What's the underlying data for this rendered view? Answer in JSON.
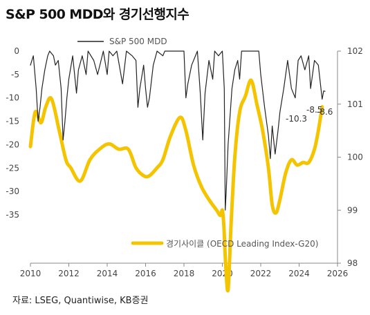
{
  "header": {
    "title": "S&P 500 MDD와 경기선행지수"
  },
  "footer": {
    "source": "자료: LSEG, Quantiwise, KB증권"
  },
  "chart_data": {
    "type": "line",
    "title": "S&P 500 MDD와 경기선행지수",
    "x_axis": {
      "range": [
        2010,
        2026
      ],
      "ticks": [
        "2010",
        "2012",
        "2014",
        "2016",
        "2018",
        "2020",
        "2022",
        "2024",
        "2026"
      ]
    },
    "y_left": {
      "range": [
        -35,
        0
      ],
      "ticks": [
        "0",
        "-5",
        "-10",
        "-15",
        "-20",
        "-25",
        "-30",
        "-35"
      ]
    },
    "y_right": {
      "range": [
        98,
        102
      ],
      "ticks": [
        "102",
        "101",
        "100",
        "99",
        "98"
      ]
    },
    "grid": false,
    "legend": [
      {
        "name": "S&P 500 MDD",
        "color": "#222222",
        "placement": "top"
      },
      {
        "name": "경기사이클 (OECD Leading Index-G20)",
        "color": "#F5C400",
        "placement": "bottom-right"
      }
    ],
    "annotations": [
      "-10.3",
      "-8.5",
      "-8.6"
    ],
    "series": [
      {
        "name": "S&P 500 MDD",
        "axis": "left",
        "color": "#222222",
        "x": [
          2010.0,
          2010.15,
          2010.3,
          2010.4,
          2010.5,
          2010.6,
          2010.75,
          2010.9,
          2011.0,
          2011.2,
          2011.3,
          2011.45,
          2011.6,
          2011.7,
          2011.8,
          2011.9,
          2012.0,
          2012.2,
          2012.4,
          2012.5,
          2012.7,
          2012.9,
          2013.0,
          2013.3,
          2013.5,
          2013.8,
          2014.0,
          2014.1,
          2014.3,
          2014.5,
          2014.8,
          2015.0,
          2015.3,
          2015.5,
          2015.6,
          2015.7,
          2015.9,
          2016.0,
          2016.1,
          2016.2,
          2016.4,
          2016.6,
          2016.9,
          2017.0,
          2017.5,
          2017.9,
          2018.0,
          2018.1,
          2018.2,
          2018.4,
          2018.7,
          2018.85,
          2018.98,
          2019.1,
          2019.3,
          2019.5,
          2019.6,
          2019.8,
          2020.0,
          2020.1,
          2020.15,
          2020.2,
          2020.3,
          2020.5,
          2020.65,
          2020.8,
          2020.9,
          2021.0,
          2021.5,
          2021.9,
          2022.0,
          2022.2,
          2022.4,
          2022.5,
          2022.6,
          2022.75,
          2022.9,
          2023.0,
          2023.2,
          2023.4,
          2023.6,
          2023.8,
          2023.95,
          2024.1,
          2024.3,
          2024.5,
          2024.6,
          2024.8,
          2025.0,
          2025.2,
          2025.28,
          2025.35
        ],
        "values": [
          -3,
          -1,
          -8,
          -15,
          -12,
          -8,
          -4,
          -1,
          0,
          -1,
          -3,
          -2,
          -8,
          -19,
          -15,
          -10,
          -6,
          -1,
          -9,
          -4,
          -1,
          -5,
          0,
          -2,
          -5,
          0,
          -5,
          0,
          -1,
          0,
          -7,
          0,
          -1,
          -2,
          -12,
          -8,
          -3,
          -8,
          -12,
          -10,
          -3,
          0,
          -1,
          0,
          0,
          0,
          0,
          -10,
          -7,
          -3,
          0,
          -9,
          -19,
          -9,
          -2,
          -6,
          0,
          -1,
          0,
          -8,
          -34,
          -30,
          -20,
          -8,
          -4,
          -2,
          -6,
          0,
          0,
          0,
          -5,
          -12,
          -18,
          -23,
          -16,
          -22,
          -17,
          -13,
          -8,
          -2,
          -8,
          -10,
          -2,
          -1,
          -4,
          -1,
          -8,
          -2,
          -3,
          -10.3,
          -8.5,
          -8.6
        ]
      },
      {
        "name": "경기사이클 (OECD Leading Index-G20)",
        "axis": "right",
        "color": "#F5C400",
        "x": [
          2010.0,
          2010.25,
          2010.55,
          2010.8,
          2011.1,
          2011.5,
          2011.85,
          2012.1,
          2012.6,
          2013.1,
          2013.6,
          2014.1,
          2014.6,
          2015.1,
          2015.5,
          2015.9,
          2016.2,
          2016.6,
          2016.9,
          2017.3,
          2017.8,
          2018.1,
          2018.5,
          2018.9,
          2019.3,
          2019.7,
          2019.9,
          2020.0,
          2020.08,
          2020.17,
          2020.3,
          2020.45,
          2020.65,
          2020.9,
          2021.2,
          2021.5,
          2021.8,
          2022.1,
          2022.4,
          2022.6,
          2022.8,
          2023.0,
          2023.3,
          2023.6,
          2023.9,
          2024.2,
          2024.5,
          2024.8,
          2025.0,
          2025.2
        ],
        "values": [
          100.2,
          100.85,
          100.65,
          100.95,
          101.1,
          100.5,
          99.95,
          99.8,
          99.55,
          99.95,
          100.15,
          100.25,
          100.15,
          100.15,
          99.8,
          99.65,
          99.65,
          99.8,
          99.95,
          100.4,
          100.75,
          100.5,
          99.85,
          99.45,
          99.2,
          99.0,
          98.9,
          99.0,
          98.7,
          98.0,
          97.5,
          98.7,
          100.0,
          100.85,
          101.15,
          101.45,
          101.0,
          100.5,
          99.8,
          99.1,
          98.95,
          99.2,
          99.7,
          99.95,
          99.85,
          99.9,
          99.9,
          100.15,
          100.5,
          100.95
        ]
      }
    ]
  }
}
